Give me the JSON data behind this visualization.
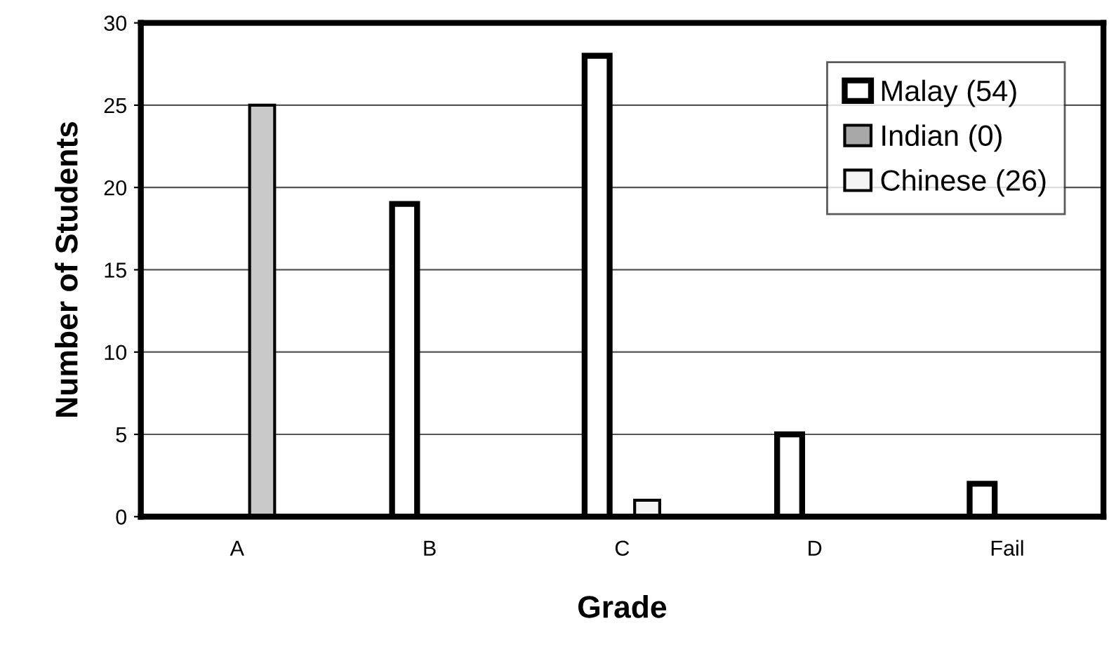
{
  "chart_data": {
    "type": "bar",
    "xlabel": "Grade",
    "ylabel": "Number of Students",
    "categories": [
      "A",
      "B",
      "C",
      "D",
      "Fail"
    ],
    "series": [
      {
        "name": "Malay (54)",
        "color": "#ffffff",
        "values": [
          0,
          19,
          28,
          5,
          2
        ]
      },
      {
        "name": "Indian (0)",
        "color": "#a8a8a8",
        "values": [
          0,
          0,
          0,
          0,
          0
        ]
      },
      {
        "name": "Chinese (26)",
        "color": "#f4f4f4",
        "colors": [
          "#c8c8c8",
          "#f4f4f4",
          "#f4f4f4",
          "#f4f4f4",
          "#f4f4f4"
        ],
        "values": [
          25,
          0,
          1,
          0,
          0
        ]
      }
    ],
    "ylim": [
      0,
      30
    ],
    "yticks": [
      0,
      5,
      10,
      15,
      20,
      25,
      30
    ],
    "grid": "y",
    "legend": "top right"
  }
}
